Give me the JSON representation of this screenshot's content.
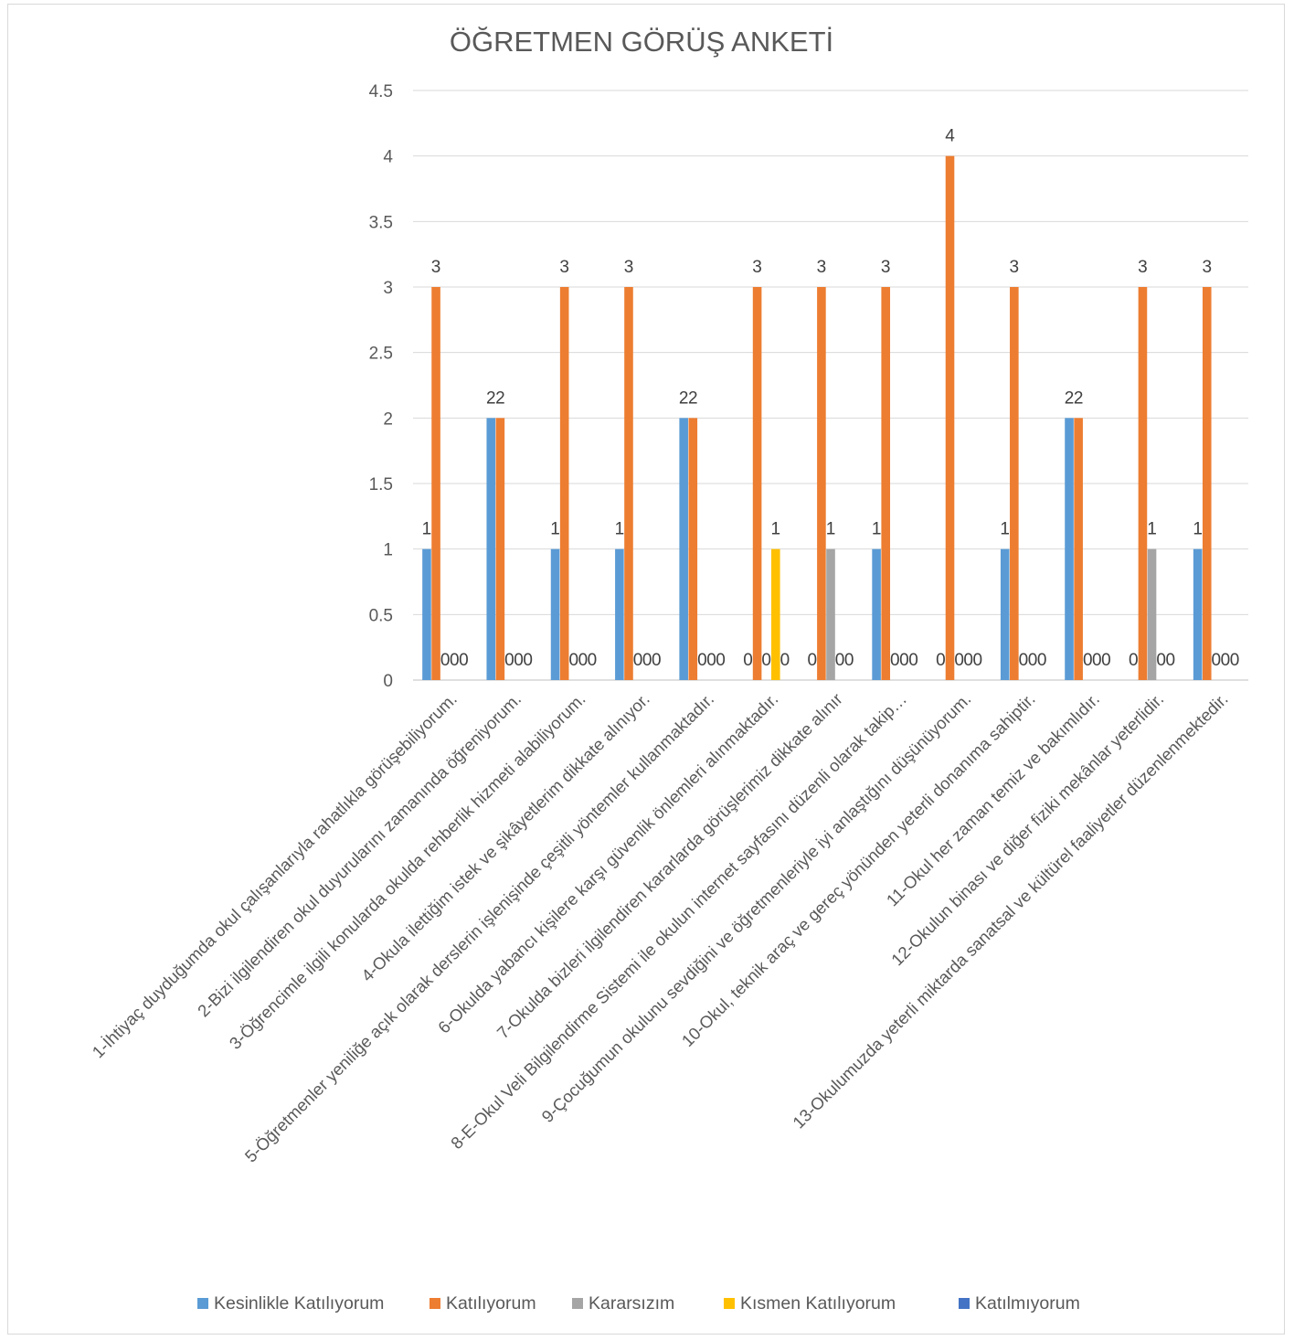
{
  "chart_data": {
    "type": "bar",
    "title": "ÖĞRETMEN GÖRÜŞ ANKETİ",
    "xlabel": "",
    "ylabel": "",
    "ylim": [
      0,
      4.5
    ],
    "ytick_labels": [
      "0",
      "0.5",
      "1",
      "1.5",
      "2",
      "2.5",
      "3",
      "3.5",
      "4",
      "4.5"
    ],
    "grid": true,
    "legend_position": "bottom",
    "categories": [
      "1-İhtiyaç duyduğumda okul çalışanlarıyla rahatlıkla görüşebiliyorum.",
      "2-Bizi ilgilendiren okul duyurularını zamanında öğreniyorum.",
      "3-Öğrencimle ilgili konularda okulda rehberlik hizmeti alabiliyorum.",
      "4-Okula ilettiğim istek ve şikâyetlerim dikkate alınıyor.",
      "5-Öğretmenler yeniliğe açık olarak derslerin işlenişinde çeşitli yöntemler kullanmaktadır.",
      "6-Okulda yabancı kişilere karşı güvenlik önlemleri alınmaktadır.",
      "7-Okulda bizleri ilgilendiren kararlarda görüşlerimiz dikkate alınır",
      "8-E-Okul Veli Bilgilendirme Sistemi ile okulun internet sayfasını düzenli olarak takip…",
      "9-Çocuğumun okulunu sevdiğini ve öğretmenleriyle iyi anlaştığını düşünüyorum.",
      "10-Okul, teknik araç ve gereç yönünden yeterli donanıma sahiptir.",
      "11-Okul her zaman temiz ve bakımlıdır.",
      "12-Okulun binası ve diğer fiziki mekânlar yeterlidir.",
      "13-Okulumuzda yeterli miktarda sanatsal ve kültürel faaliyetler düzenlenmektedir."
    ],
    "series": [
      {
        "name": "Kesinlikle Katılıyorum",
        "color": "#5b9bd5",
        "values": [
          1,
          2,
          1,
          1,
          2,
          0,
          0,
          1,
          0,
          1,
          2,
          0,
          1
        ]
      },
      {
        "name": "Katılıyorum",
        "color": "#ed7d31",
        "values": [
          3,
          2,
          3,
          3,
          2,
          3,
          3,
          3,
          4,
          3,
          2,
          3,
          3
        ]
      },
      {
        "name": "Kararsızım",
        "color": "#a5a5a5",
        "values": [
          0,
          0,
          0,
          0,
          0,
          0,
          1,
          0,
          0,
          0,
          0,
          1,
          0
        ]
      },
      {
        "name": "Kısmen Katılıyorum",
        "color": "#ffc000",
        "values": [
          0,
          0,
          0,
          0,
          0,
          1,
          0,
          0,
          0,
          0,
          0,
          0,
          0
        ]
      },
      {
        "name": "Katılmıyorum",
        "color": "#4472c4",
        "values": [
          0,
          0,
          0,
          0,
          0,
          0,
          0,
          0,
          0,
          0,
          0,
          0,
          0
        ]
      }
    ]
  }
}
